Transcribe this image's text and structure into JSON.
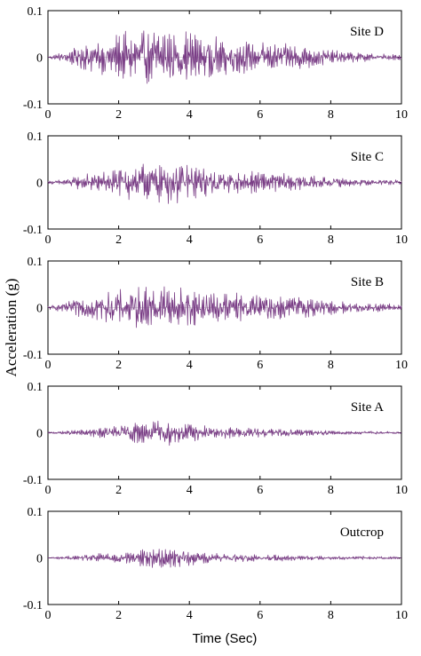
{
  "chart_data": {
    "type": "line",
    "ylabel": "Acceleration (g)",
    "xlabel": "Time (Sec)",
    "xlim": [
      0,
      10
    ],
    "ylim": [
      -0.1,
      0.1
    ],
    "x_ticks": [
      "0",
      "2",
      "4",
      "6",
      "8",
      "10"
    ],
    "y_ticks": [
      "0.1",
      "0",
      "-0.1"
    ],
    "line_color": "#7a3e86",
    "grid": false,
    "panels": [
      {
        "label": "Site D",
        "approx_peak_amplitude_g": 0.055,
        "envelope": [
          {
            "t": 0,
            "a": 0.002
          },
          {
            "t": 0.5,
            "a": 0.01
          },
          {
            "t": 1,
            "a": 0.024
          },
          {
            "t": 1.5,
            "a": 0.03
          },
          {
            "t": 2,
            "a": 0.04
          },
          {
            "t": 2.5,
            "a": 0.05
          },
          {
            "t": 3,
            "a": 0.048
          },
          {
            "t": 3.5,
            "a": 0.052
          },
          {
            "t": 4,
            "a": 0.044
          },
          {
            "t": 4.5,
            "a": 0.038
          },
          {
            "t": 5,
            "a": 0.032
          },
          {
            "t": 5.5,
            "a": 0.028
          },
          {
            "t": 6,
            "a": 0.026
          },
          {
            "t": 6.5,
            "a": 0.024
          },
          {
            "t": 7,
            "a": 0.022
          },
          {
            "t": 7.5,
            "a": 0.018
          },
          {
            "t": 8,
            "a": 0.012
          },
          {
            "t": 9,
            "a": 0.007
          },
          {
            "t": 10,
            "a": 0.005
          }
        ]
      },
      {
        "label": "Site C",
        "approx_peak_amplitude_g": 0.04,
        "envelope": [
          {
            "t": 0,
            "a": 0.002
          },
          {
            "t": 0.5,
            "a": 0.006
          },
          {
            "t": 1,
            "a": 0.014
          },
          {
            "t": 1.5,
            "a": 0.02
          },
          {
            "t": 2,
            "a": 0.026
          },
          {
            "t": 2.5,
            "a": 0.034
          },
          {
            "t": 3,
            "a": 0.034
          },
          {
            "t": 3.5,
            "a": 0.038
          },
          {
            "t": 4,
            "a": 0.032
          },
          {
            "t": 4.5,
            "a": 0.026
          },
          {
            "t": 5,
            "a": 0.022
          },
          {
            "t": 5.5,
            "a": 0.02
          },
          {
            "t": 6,
            "a": 0.018
          },
          {
            "t": 6.5,
            "a": 0.016
          },
          {
            "t": 7,
            "a": 0.015
          },
          {
            "t": 7.5,
            "a": 0.012
          },
          {
            "t": 8,
            "a": 0.009
          },
          {
            "t": 9,
            "a": 0.006
          },
          {
            "t": 10,
            "a": 0.004
          }
        ]
      },
      {
        "label": "Site B",
        "approx_peak_amplitude_g": 0.045,
        "envelope": [
          {
            "t": 0,
            "a": 0.003
          },
          {
            "t": 0.5,
            "a": 0.008
          },
          {
            "t": 1,
            "a": 0.02
          },
          {
            "t": 1.5,
            "a": 0.026
          },
          {
            "t": 2,
            "a": 0.03
          },
          {
            "t": 2.5,
            "a": 0.036
          },
          {
            "t": 3,
            "a": 0.04
          },
          {
            "t": 3.5,
            "a": 0.038
          },
          {
            "t": 4,
            "a": 0.034
          },
          {
            "t": 4.5,
            "a": 0.03
          },
          {
            "t": 5,
            "a": 0.028
          },
          {
            "t": 5.5,
            "a": 0.026
          },
          {
            "t": 6,
            "a": 0.024
          },
          {
            "t": 6.5,
            "a": 0.022
          },
          {
            "t": 7,
            "a": 0.02
          },
          {
            "t": 7.5,
            "a": 0.016
          },
          {
            "t": 8,
            "a": 0.012
          },
          {
            "t": 9,
            "a": 0.008
          },
          {
            "t": 10,
            "a": 0.006
          }
        ]
      },
      {
        "label": "Site A",
        "approx_peak_amplitude_g": 0.025,
        "envelope": [
          {
            "t": 0,
            "a": 0.001
          },
          {
            "t": 0.5,
            "a": 0.003
          },
          {
            "t": 1,
            "a": 0.006
          },
          {
            "t": 1.5,
            "a": 0.009
          },
          {
            "t": 2,
            "a": 0.012
          },
          {
            "t": 2.5,
            "a": 0.018
          },
          {
            "t": 3,
            "a": 0.02
          },
          {
            "t": 3.5,
            "a": 0.022
          },
          {
            "t": 4,
            "a": 0.016
          },
          {
            "t": 4.5,
            "a": 0.012
          },
          {
            "t": 5,
            "a": 0.01
          },
          {
            "t": 5.5,
            "a": 0.009
          },
          {
            "t": 6,
            "a": 0.008
          },
          {
            "t": 6.5,
            "a": 0.007
          },
          {
            "t": 7,
            "a": 0.006
          },
          {
            "t": 7.5,
            "a": 0.005
          },
          {
            "t": 8,
            "a": 0.004
          },
          {
            "t": 9,
            "a": 0.003
          },
          {
            "t": 10,
            "a": 0.002
          }
        ]
      },
      {
        "label": "Outcrop",
        "approx_peak_amplitude_g": 0.022,
        "envelope": [
          {
            "t": 0,
            "a": 0.001
          },
          {
            "t": 0.5,
            "a": 0.003
          },
          {
            "t": 1,
            "a": 0.005
          },
          {
            "t": 1.5,
            "a": 0.008
          },
          {
            "t": 2,
            "a": 0.01
          },
          {
            "t": 2.5,
            "a": 0.014
          },
          {
            "t": 3,
            "a": 0.018
          },
          {
            "t": 3.5,
            "a": 0.016
          },
          {
            "t": 4,
            "a": 0.013
          },
          {
            "t": 4.5,
            "a": 0.01
          },
          {
            "t": 5,
            "a": 0.008
          },
          {
            "t": 5.5,
            "a": 0.007
          },
          {
            "t": 6,
            "a": 0.006
          },
          {
            "t": 6.5,
            "a": 0.006
          },
          {
            "t": 7,
            "a": 0.005
          },
          {
            "t": 7.5,
            "a": 0.004
          },
          {
            "t": 8,
            "a": 0.003
          },
          {
            "t": 9,
            "a": 0.003
          },
          {
            "t": 10,
            "a": 0.002
          }
        ]
      }
    ]
  }
}
